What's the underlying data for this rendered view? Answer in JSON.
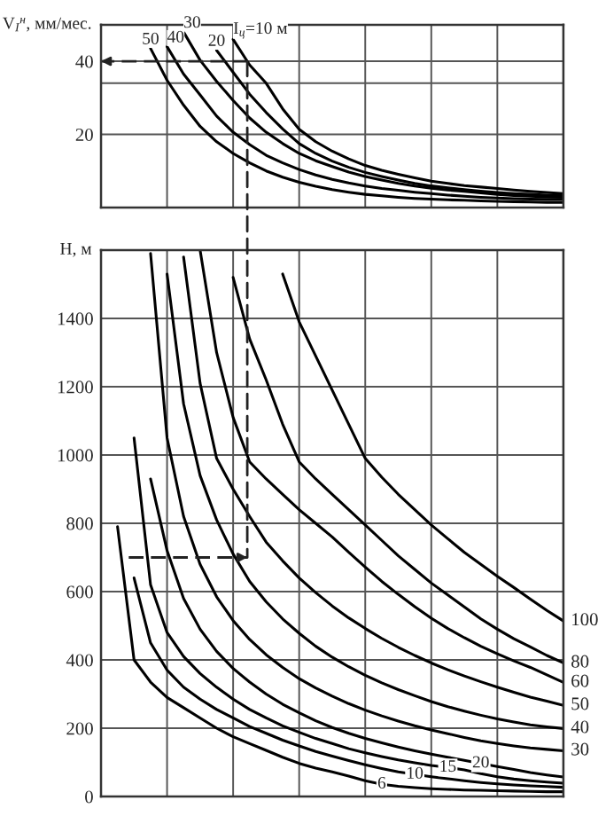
{
  "chart_data": [
    {
      "type": "line",
      "ylabel": "V$_{I}$$^{н}$, мм/мес.",
      "categories": [
        null,
        null,
        null,
        null,
        null,
        null,
        null,
        null,
        null,
        null,
        null,
        null,
        null,
        null,
        null,
        null,
        null,
        null,
        null,
        null,
        null,
        null,
        null,
        null,
        null,
        null,
        null,
        null,
        null
      ],
      "series": [
        {
          "name": "50",
          "color": "#000000",
          "values": [
            null,
            null,
            null,
            43.5,
            34.8,
            28,
            22.2,
            18,
            14.8,
            12.2,
            10,
            8.3,
            6.9,
            5.8,
            4.9,
            4.2,
            3.6,
            3.2,
            2.8,
            2.5,
            2.3,
            2.1,
            2,
            1.8,
            1.7,
            1.6,
            1.5,
            1.4,
            1.4
          ]
        },
        {
          "name": "40",
          "color": "#000000",
          "values": [
            null,
            null,
            null,
            null,
            44,
            36.5,
            30.8,
            25,
            20.6,
            17.2,
            14.3,
            12.2,
            10.4,
            8.9,
            7.7,
            6.7,
            5.9,
            5.2,
            4.7,
            4.2,
            3.8,
            3.4,
            3.1,
            2.8,
            2.6,
            2.4,
            2.3,
            2.2,
            2.2
          ]
        },
        {
          "name": "30",
          "color": "#000000",
          "values": [
            null,
            null,
            null,
            null,
            null,
            48,
            40.3,
            34.5,
            29.3,
            24.5,
            20.6,
            17.5,
            14.8,
            12.8,
            11.2,
            9.7,
            8.5,
            7.5,
            6.6,
            5.9,
            5.3,
            4.8,
            4.4,
            4,
            3.6,
            3.3,
            3.1,
            2.9,
            2.8
          ]
        },
        {
          "name": "20",
          "color": "#000000",
          "values": [
            null,
            null,
            null,
            null,
            null,
            null,
            null,
            43,
            37,
            31,
            26,
            21.5,
            17.5,
            14.8,
            12.7,
            11,
            9.6,
            8.5,
            7.5,
            6.6,
            5.9,
            5.4,
            4.9,
            4.5,
            4.1,
            3.8,
            3.6,
            3.4,
            3.3
          ]
        },
        {
          "name": "I$_{ц}$=10 м",
          "color": "#000000",
          "values": [
            null,
            null,
            null,
            null,
            null,
            null,
            null,
            null,
            46,
            39,
            34,
            27,
            21.4,
            18,
            15.4,
            13.3,
            11.5,
            10.2,
            9.1,
            8.1,
            7.2,
            6.6,
            6,
            5.6,
            5.2,
            4.8,
            4.4,
            4.1,
            3.8
          ]
        }
      ],
      "ylim": [
        0,
        50
      ],
      "yticks": [
        20,
        {
          "value": 34,
          "label": null
        },
        40
      ],
      "grid": true,
      "tick_labels": "y",
      "line_style": "solid",
      "ref_lines": [
        {
          "axis": "y",
          "value": 40,
          "line_style": "dashed"
        }
      ]
    },
    {
      "type": "line",
      "ylabel": "H, м",
      "categories": [
        null,
        null,
        null,
        null,
        null,
        null,
        null,
        null,
        null,
        null,
        null,
        null,
        null,
        null,
        null,
        null,
        null,
        null,
        null,
        null,
        null,
        null,
        null,
        null,
        null,
        null,
        null,
        null,
        null
      ],
      "series": [
        {
          "name": "100",
          "color": "#000000",
          "values": [
            null,
            null,
            null,
            null,
            null,
            null,
            null,
            null,
            null,
            null,
            null,
            1530,
            1390,
            1290,
            1190,
            1090,
            990,
            935,
            885,
            840,
            795,
            755,
            715,
            680,
            645,
            612,
            578,
            545,
            514
          ]
        },
        {
          "name": "80",
          "color": "#000000",
          "values": [
            null,
            null,
            null,
            null,
            null,
            null,
            null,
            null,
            1520,
            1340,
            1220,
            1090,
            980,
            930,
            885,
            840,
            795,
            750,
            705,
            665,
            625,
            590,
            555,
            520,
            490,
            462,
            438,
            413,
            391
          ]
        },
        {
          "name": "60",
          "color": "#000000",
          "values": [
            null,
            null,
            null,
            null,
            null,
            null,
            1600,
            1300,
            1110,
            980,
            930,
            885,
            840,
            800,
            760,
            715,
            672,
            630,
            592,
            556,
            522,
            492,
            465,
            440,
            418,
            397,
            378,
            356,
            334
          ]
        },
        {
          "name": "50",
          "color": "#000000",
          "values": [
            null,
            null,
            null,
            null,
            null,
            1580,
            1210,
            990,
            900,
            820,
            745,
            690,
            640,
            597,
            558,
            523,
            492,
            463,
            437,
            413,
            391,
            371,
            353,
            336,
            320,
            305,
            291,
            279,
            267
          ]
        },
        {
          "name": "40",
          "color": "#000000",
          "values": [
            null,
            null,
            null,
            null,
            1530,
            1150,
            940,
            810,
            710,
            630,
            570,
            520,
            478,
            440,
            408,
            380,
            355,
            333,
            313,
            295,
            278,
            263,
            250,
            238,
            227,
            218,
            210,
            204,
            199
          ]
        },
        {
          "name": "30",
          "color": "#000000",
          "values": [
            null,
            null,
            null,
            1590,
            1050,
            820,
            680,
            585,
            515,
            460,
            415,
            378,
            345,
            318,
            294,
            272,
            253,
            236,
            221,
            207,
            195,
            184,
            173,
            163,
            155,
            148,
            142,
            138,
            134
          ]
        },
        {
          "name": "20",
          "color": "#000000",
          "values": [
            null,
            null,
            null,
            930,
            720,
            580,
            490,
            425,
            375,
            335,
            300,
            270,
            245,
            222,
            202,
            185,
            170,
            157,
            145,
            134,
            124,
            115,
            106,
            97,
            88,
            79,
            70,
            63,
            57
          ]
        },
        {
          "name": "15",
          "color": "#000000",
          "values": [
            null,
            null,
            1050,
            620,
            480,
            410,
            360,
            320,
            285,
            255,
            230,
            207,
            188,
            170,
            155,
            140,
            128,
            117,
            107,
            99,
            91,
            85,
            78,
            67,
            58,
            51,
            46,
            42,
            39
          ]
        },
        {
          "name": "10",
          "color": "#000000",
          "values": [
            null,
            null,
            640,
            450,
            370,
            320,
            285,
            255,
            230,
            205,
            185,
            165,
            148,
            132,
            118,
            105,
            93,
            82,
            72,
            65,
            58,
            52,
            46,
            41,
            37,
            34,
            31,
            29,
            27
          ]
        },
        {
          "name": "6",
          "color": "#000000",
          "values": [
            null,
            790,
            400,
            335,
            290,
            260,
            230,
            200,
            175,
            155,
            135,
            115,
            97,
            83,
            72,
            60,
            46,
            36,
            30,
            26,
            23,
            21,
            19,
            18,
            17,
            16,
            15,
            14,
            14
          ]
        }
      ],
      "ylim": [
        0,
        1600
      ],
      "yticks": [
        0,
        200,
        400,
        600,
        800,
        1000,
        1200,
        1400
      ],
      "grid": true,
      "tick_labels": "y",
      "line_style": "solid",
      "ref_lines": [
        {
          "axis": "y",
          "value": 700,
          "line_style": "dashed"
        }
      ]
    }
  ]
}
